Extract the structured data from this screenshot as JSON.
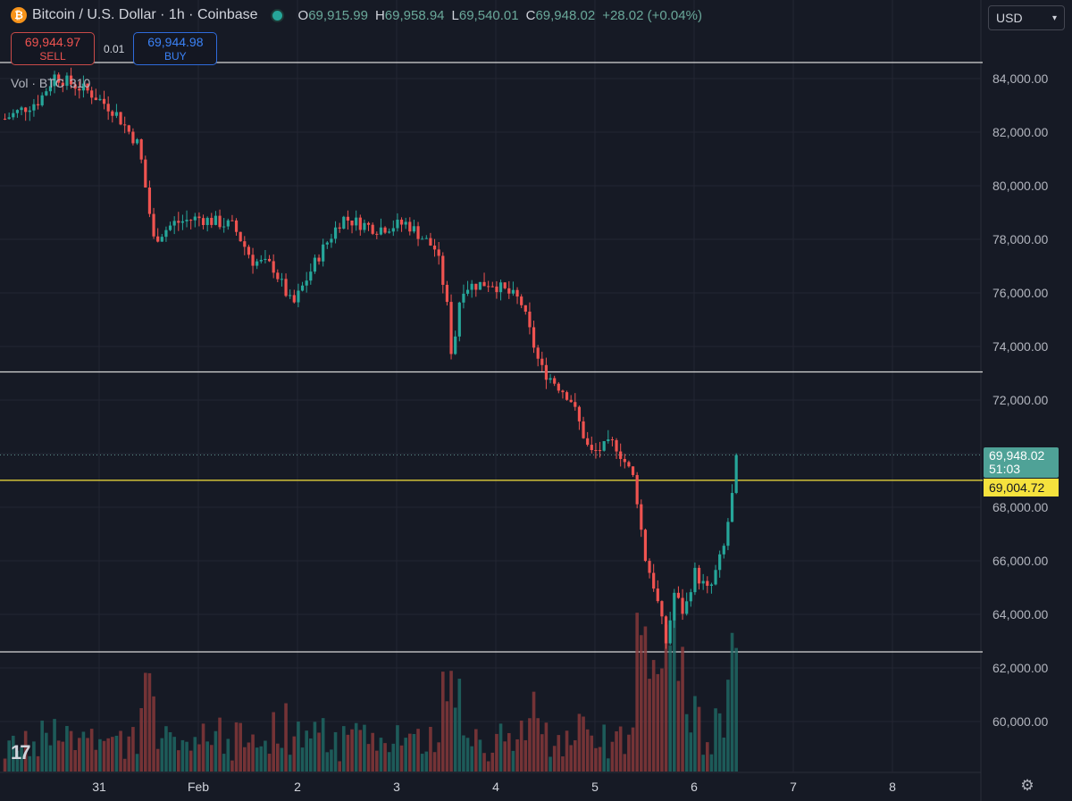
{
  "header": {
    "symbol_icon": "bitcoin-icon",
    "title": "Bitcoin / U.S. Dollar · 1h · Coinbase",
    "ohlc": [
      {
        "label": "O",
        "value": "69,915.99"
      },
      {
        "label": "H",
        "value": "69,958.94"
      },
      {
        "label": "L",
        "value": "69,540.01"
      },
      {
        "label": "C",
        "value": "69,948.02"
      }
    ],
    "change": "+28.02 (+0.04%)"
  },
  "trade": {
    "sell_price": "69,944.97",
    "sell_label": "SELL",
    "spread": "0.01",
    "buy_price": "69,944.98",
    "buy_label": "BUY"
  },
  "volume_legend": {
    "label": "Vol · BTC",
    "value": "310"
  },
  "currency": {
    "selected": "USD"
  },
  "price_tags": {
    "last_price": "69,948.02",
    "countdown": "51:03",
    "line_price": "69,004.72"
  },
  "colors": {
    "up": "#26a69a",
    "down": "#ef5350",
    "background": "#161a25",
    "grid": "#232632",
    "highlight_line": "#f5e23d"
  },
  "chart_data": {
    "type": "candlestick",
    "title": "Bitcoin / U.S. Dollar · 1h · Coinbase",
    "y_ticks": [
      "84,000.00",
      "82,000.00",
      "80,000.00",
      "78,000.00",
      "76,000.00",
      "74,000.00",
      "72,000.00",
      "70,000.00",
      "68,000.00",
      "66,000.00",
      "64,000.00",
      "62,000.00",
      "60,000.00"
    ],
    "y_tick_values": [
      84000,
      82000,
      80000,
      78000,
      76000,
      74000,
      72000,
      70000,
      68000,
      66000,
      64000,
      62000,
      60000
    ],
    "x_ticks": [
      "31",
      "Feb",
      "2",
      "3",
      "4",
      "5",
      "6",
      "7",
      "8"
    ],
    "x_tick_days": [
      0,
      1,
      2,
      3,
      4,
      5,
      6,
      7,
      8
    ],
    "ylim": [
      58500,
      85500
    ],
    "horizontal_lines": [
      84600,
      73050,
      62600
    ],
    "highlight_line": 69004.72,
    "last_close": 69948.02,
    "series_hourly_close_anchors": [
      {
        "day": -0.95,
        "price": 82500
      },
      {
        "day": -0.6,
        "price": 83200
      },
      {
        "day": -0.45,
        "price": 84100
      },
      {
        "day": -0.1,
        "price": 83500
      },
      {
        "day": 0.15,
        "price": 82800
      },
      {
        "day": 0.4,
        "price": 81500
      },
      {
        "day": 0.55,
        "price": 78000
      },
      {
        "day": 0.75,
        "price": 78600
      },
      {
        "day": 1.0,
        "price": 78800
      },
      {
        "day": 1.35,
        "price": 78500
      },
      {
        "day": 1.55,
        "price": 77200
      },
      {
        "day": 1.75,
        "price": 77000
      },
      {
        "day": 1.95,
        "price": 75500
      },
      {
        "day": 2.2,
        "price": 77300
      },
      {
        "day": 2.45,
        "price": 78800
      },
      {
        "day": 2.8,
        "price": 78400
      },
      {
        "day": 3.1,
        "price": 78600
      },
      {
        "day": 3.4,
        "price": 77600
      },
      {
        "day": 3.5,
        "price": 75800
      },
      {
        "day": 3.56,
        "price": 73500
      },
      {
        "day": 3.65,
        "price": 76200
      },
      {
        "day": 3.95,
        "price": 76400
      },
      {
        "day": 4.25,
        "price": 75700
      },
      {
        "day": 4.45,
        "price": 73200
      },
      {
        "day": 4.75,
        "price": 72100
      },
      {
        "day": 4.95,
        "price": 70000
      },
      {
        "day": 5.2,
        "price": 70400
      },
      {
        "day": 5.4,
        "price": 69000
      },
      {
        "day": 5.5,
        "price": 66200
      },
      {
        "day": 5.6,
        "price": 65000
      },
      {
        "day": 5.72,
        "price": 62900
      },
      {
        "day": 5.8,
        "price": 64800
      },
      {
        "day": 5.9,
        "price": 64000
      },
      {
        "day": 6.0,
        "price": 65600
      },
      {
        "day": 6.15,
        "price": 64800
      },
      {
        "day": 6.3,
        "price": 66500
      },
      {
        "day": 6.45,
        "price": 69948.02
      }
    ]
  }
}
